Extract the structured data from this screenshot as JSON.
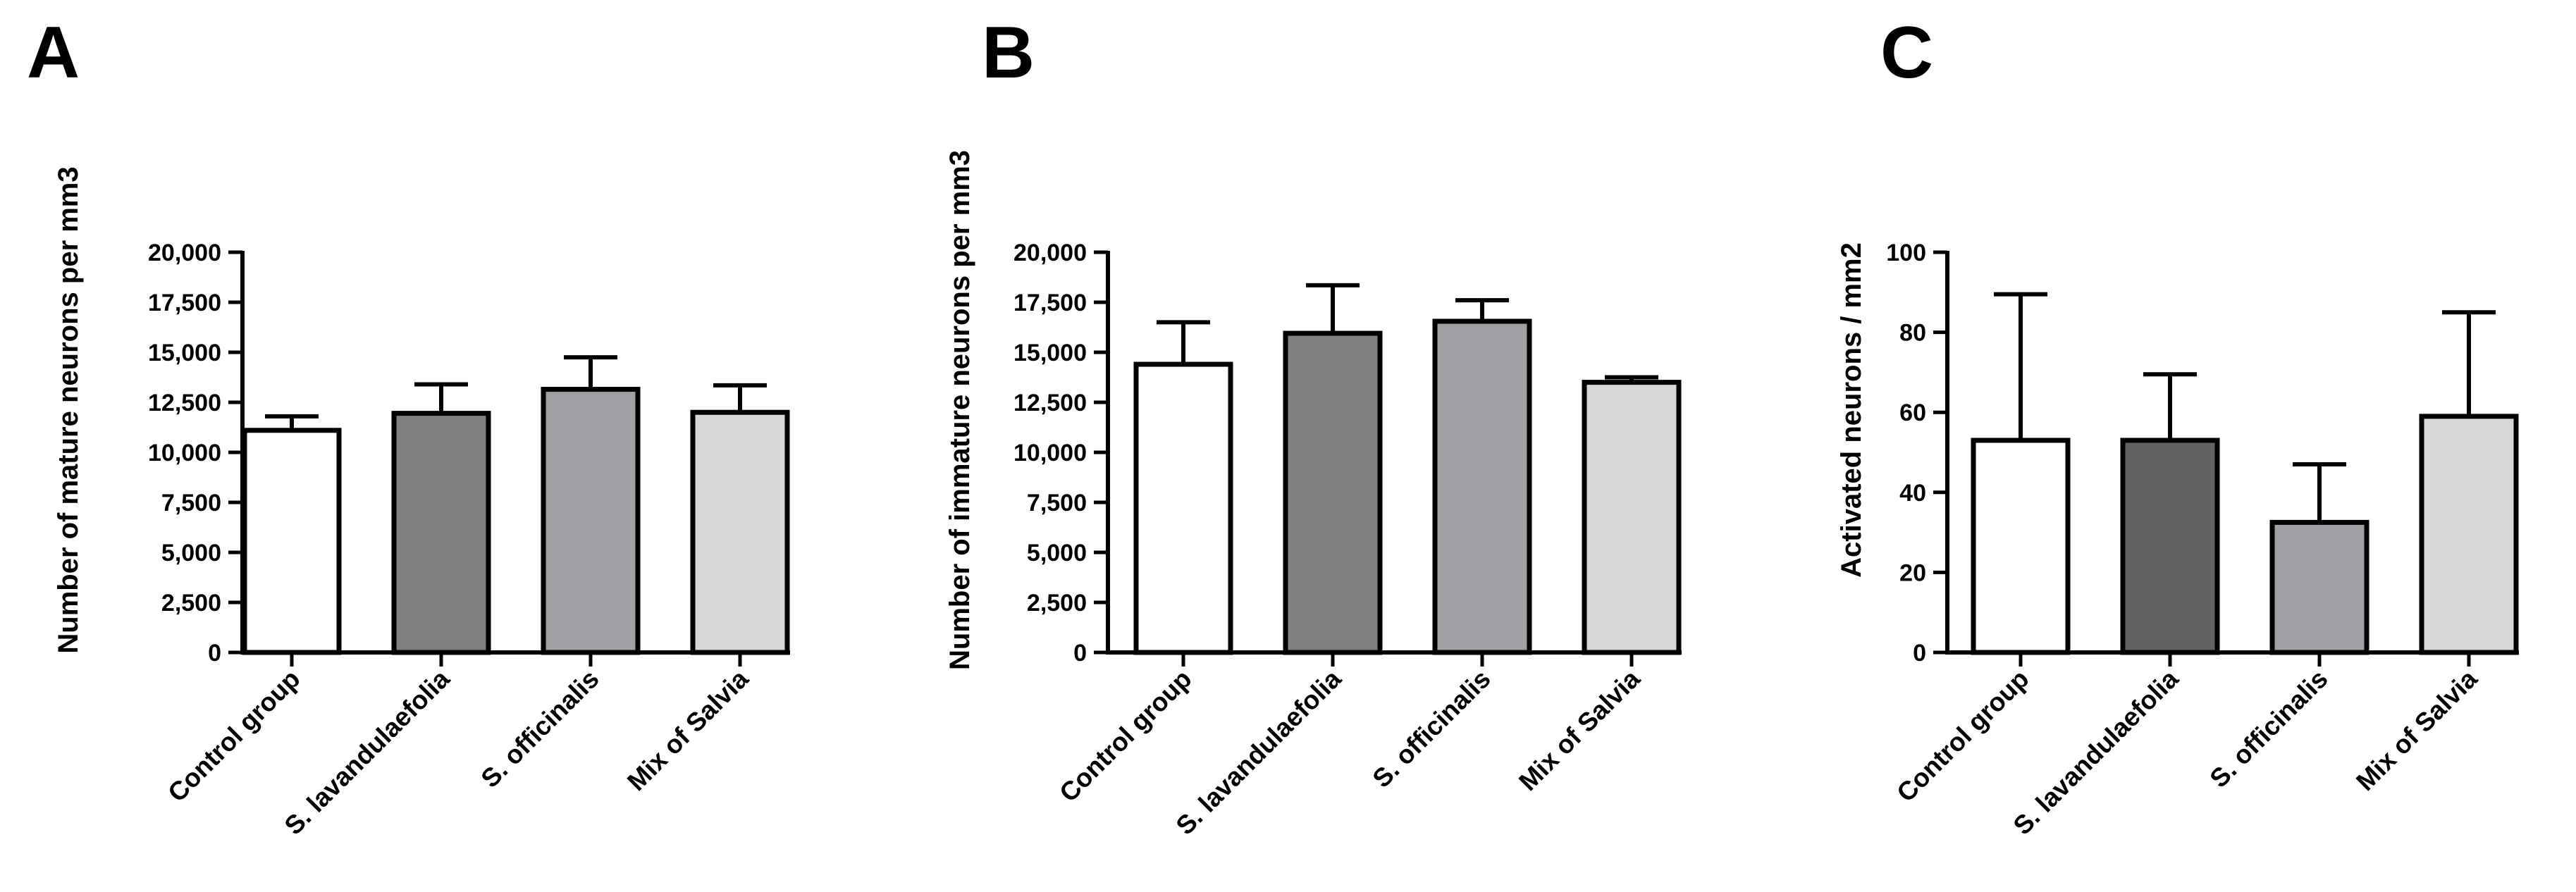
{
  "chart_data": [
    {
      "panel": "A",
      "type": "bar",
      "categories": [
        "Control group",
        "S. lavandulaefolia",
        "S. officinalis",
        "Mix of Salvia"
      ],
      "values": [
        11100,
        11950,
        13150,
        12000
      ],
      "errors": [
        700,
        1450,
        1600,
        1350
      ],
      "colors": [
        "#ffffff",
        "#808080",
        "#a0a0a4",
        "#d7d7d7"
      ],
      "ylabel": "Number of mature neurons per mm3",
      "ylim": [
        0,
        20000
      ],
      "yticks": [
        0,
        2500,
        5000,
        7500,
        10000,
        12500,
        15000,
        17500,
        20000
      ],
      "ytick_labels": [
        "0",
        "2,500",
        "5,000",
        "7,500",
        "10,000",
        "12,500",
        "15,000",
        "17,500",
        "20,000"
      ]
    },
    {
      "panel": "B",
      "type": "bar",
      "categories": [
        "Control group",
        "S. lavandulaefolia",
        "S. officinalis",
        "Mix of Salvia"
      ],
      "values": [
        14400,
        15950,
        16550,
        13500
      ],
      "errors": [
        2100,
        2400,
        1050,
        250
      ],
      "colors": [
        "#ffffff",
        "#808080",
        "#a0a0a4",
        "#d7d7d7"
      ],
      "ylabel": "Number of immature neurons per mm3",
      "ylim": [
        0,
        20000
      ],
      "yticks": [
        0,
        2500,
        5000,
        7500,
        10000,
        12500,
        15000,
        17500,
        20000
      ],
      "ytick_labels": [
        "0",
        "2,500",
        "5,000",
        "7,500",
        "10,000",
        "12,500",
        "15,000",
        "17,500",
        "20,000"
      ]
    },
    {
      "panel": "C",
      "type": "bar",
      "categories": [
        "Control group",
        "S. lavandulaefolia",
        "S. officinalis",
        "Mix of Salvia"
      ],
      "values": [
        53,
        53,
        32.5,
        59
      ],
      "errors": [
        36.5,
        16.5,
        14.5,
        26
      ],
      "colors": [
        "#ffffff",
        "#636363",
        "#a0a0a4",
        "#d7d7d7"
      ],
      "ylabel": "Activated neurons / mm2",
      "ylim": [
        0,
        100
      ],
      "yticks": [
        0,
        20,
        40,
        60,
        80,
        100
      ],
      "ytick_labels": [
        "0",
        "20",
        "40",
        "60",
        "80",
        "100"
      ]
    }
  ]
}
